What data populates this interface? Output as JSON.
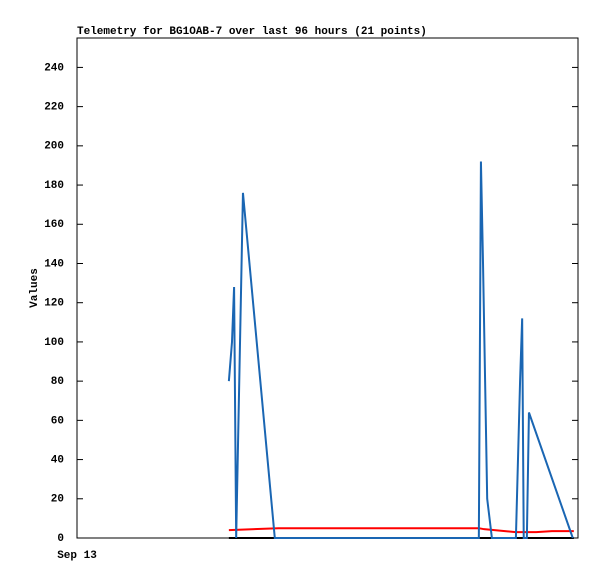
{
  "chart_data": {
    "type": "line",
    "title": "Telemetry for BG1OAB-7 over last 96 hours (21 points)",
    "y_label": "Values",
    "xlim": [
      0,
      96
    ],
    "xticks": [
      {
        "value": 0,
        "label": "Sep 13"
      }
    ],
    "ylim": [
      0,
      255
    ],
    "yticks": [
      0,
      20,
      40,
      60,
      80,
      100,
      120,
      140,
      160,
      180,
      200,
      220,
      240
    ],
    "series": [
      {
        "color": "#000000",
        "x": [
          29.1,
          95.2
        ],
        "values": [
          0,
          0
        ]
      },
      {
        "color": "#ff0000",
        "x": [
          29.1,
          38.6,
          77.0,
          78.0,
          82.0,
          84.0,
          86.5,
          88.0,
          91.0,
          95.2
        ],
        "values": [
          4,
          5,
          5,
          4.5,
          3.5,
          3,
          3,
          3,
          3.5,
          3.5
        ]
      },
      {
        "color": "#1a66b3",
        "x": [
          29.1,
          29.7,
          30.1,
          30.5,
          31.8,
          37.9,
          77.0,
          77.4,
          77.8,
          78.6,
          79.5,
          84.1,
          84.9,
          85.3,
          85.6,
          86.2,
          86.6,
          95.0
        ],
        "values": [
          80,
          100,
          128,
          0,
          176,
          0,
          0,
          192,
          140,
          20,
          0,
          0,
          80,
          112,
          0,
          0,
          64,
          0
        ]
      }
    ]
  }
}
